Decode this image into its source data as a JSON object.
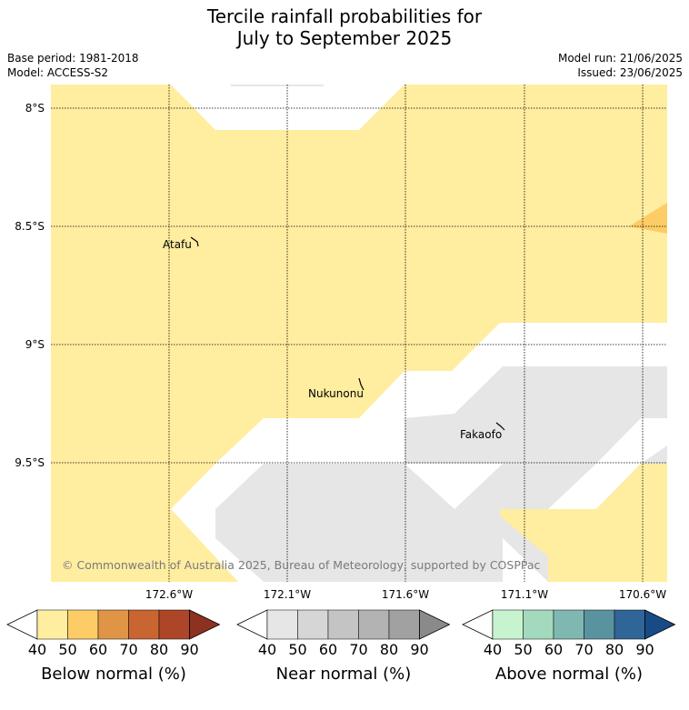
{
  "title": {
    "line1": "Tercile rainfall probabilities for",
    "line2": "July to September 2025"
  },
  "meta": {
    "base_period": "Base period: 1981-2018",
    "model": "Model: ACCESS-S2",
    "model_run": "Model run: 21/06/2025",
    "issued": "Issued: 23/06/2025"
  },
  "map": {
    "lat_labels": [
      "8°S",
      "8.5°S",
      "9°S",
      "9.5°S"
    ],
    "lon_labels": [
      "172.6°W",
      "172.1°W",
      "171.6°W",
      "171.1°W",
      "170.6°W"
    ],
    "places": [
      "Atafu",
      "Nukunonu",
      "Fakaofo"
    ],
    "credit": "© Commonwealth of Australia 2025, Bureau of Meteorology, supported by COSPPac",
    "colors": {
      "below_40_50": "#ffeda0",
      "below_50_60": "#fdcc66",
      "near_40_50": "#e6e6e6",
      "ocean_white": "#ffffff"
    }
  },
  "colorbars": [
    {
      "title": "Below normal (%)",
      "ticks": [
        "40",
        "50",
        "60",
        "70",
        "80",
        "90"
      ],
      "colors": [
        "#ffffff",
        "#ffeda0",
        "#fdcc66",
        "#e09446",
        "#c96530",
        "#ad4628",
        "#8c3220"
      ]
    },
    {
      "title": "Near normal (%)",
      "ticks": [
        "40",
        "50",
        "60",
        "70",
        "80",
        "90"
      ],
      "colors": [
        "#ffffff",
        "#e6e6e6",
        "#d6d6d6",
        "#c4c4c4",
        "#b3b3b3",
        "#a1a1a1",
        "#8a8a8a"
      ]
    },
    {
      "title": "Above normal (%)",
      "ticks": [
        "40",
        "50",
        "60",
        "70",
        "80",
        "90"
      ],
      "colors": [
        "#ffffff",
        "#c7f4cf",
        "#a3d9bd",
        "#7fb8b0",
        "#5a93a0",
        "#2f6597",
        "#184b86"
      ]
    }
  ]
}
